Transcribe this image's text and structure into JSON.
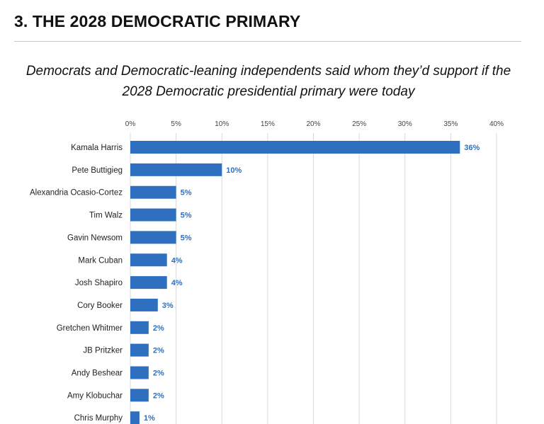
{
  "header": {
    "section_title": "3. THE 2028 DEMOCRATIC PRIMARY",
    "subtitle_line1": "Democrats and Democratic-leaning independents said whom they’d support if the",
    "subtitle_line2": "2028 Democratic presidential primary were today"
  },
  "colors": {
    "bar": "#2f6fbf",
    "data_label": "#2f6fbf",
    "grid": "#d9d9d9"
  },
  "chart_data": {
    "type": "bar",
    "orientation": "horizontal",
    "categories": [
      "Kamala Harris",
      "Pete Buttigieg",
      "Alexandria Ocasio-Cortez",
      "Tim Walz",
      "Gavin Newsom",
      "Mark Cuban",
      "Josh Shapiro",
      "Cory Booker",
      "Gretchen Whitmer",
      "JB Pritzker",
      "Andy Beshear",
      "Amy Klobuchar",
      "Chris Murphy"
    ],
    "values": [
      36,
      10,
      5,
      5,
      5,
      4,
      4,
      3,
      2,
      2,
      2,
      2,
      1
    ],
    "data_labels": [
      "36%",
      "10%",
      "5%",
      "5%",
      "5%",
      "4%",
      "4%",
      "3%",
      "2%",
      "2%",
      "2%",
      "2%",
      "1%"
    ],
    "x_ticks": [
      0,
      5,
      10,
      15,
      20,
      25,
      30,
      35,
      40
    ],
    "x_tick_labels": [
      "0%",
      "5%",
      "10%",
      "15%",
      "20%",
      "25%",
      "30%",
      "35%",
      "40%"
    ],
    "xlim": [
      0,
      40
    ],
    "grid": true,
    "x_axis_position": "top"
  }
}
